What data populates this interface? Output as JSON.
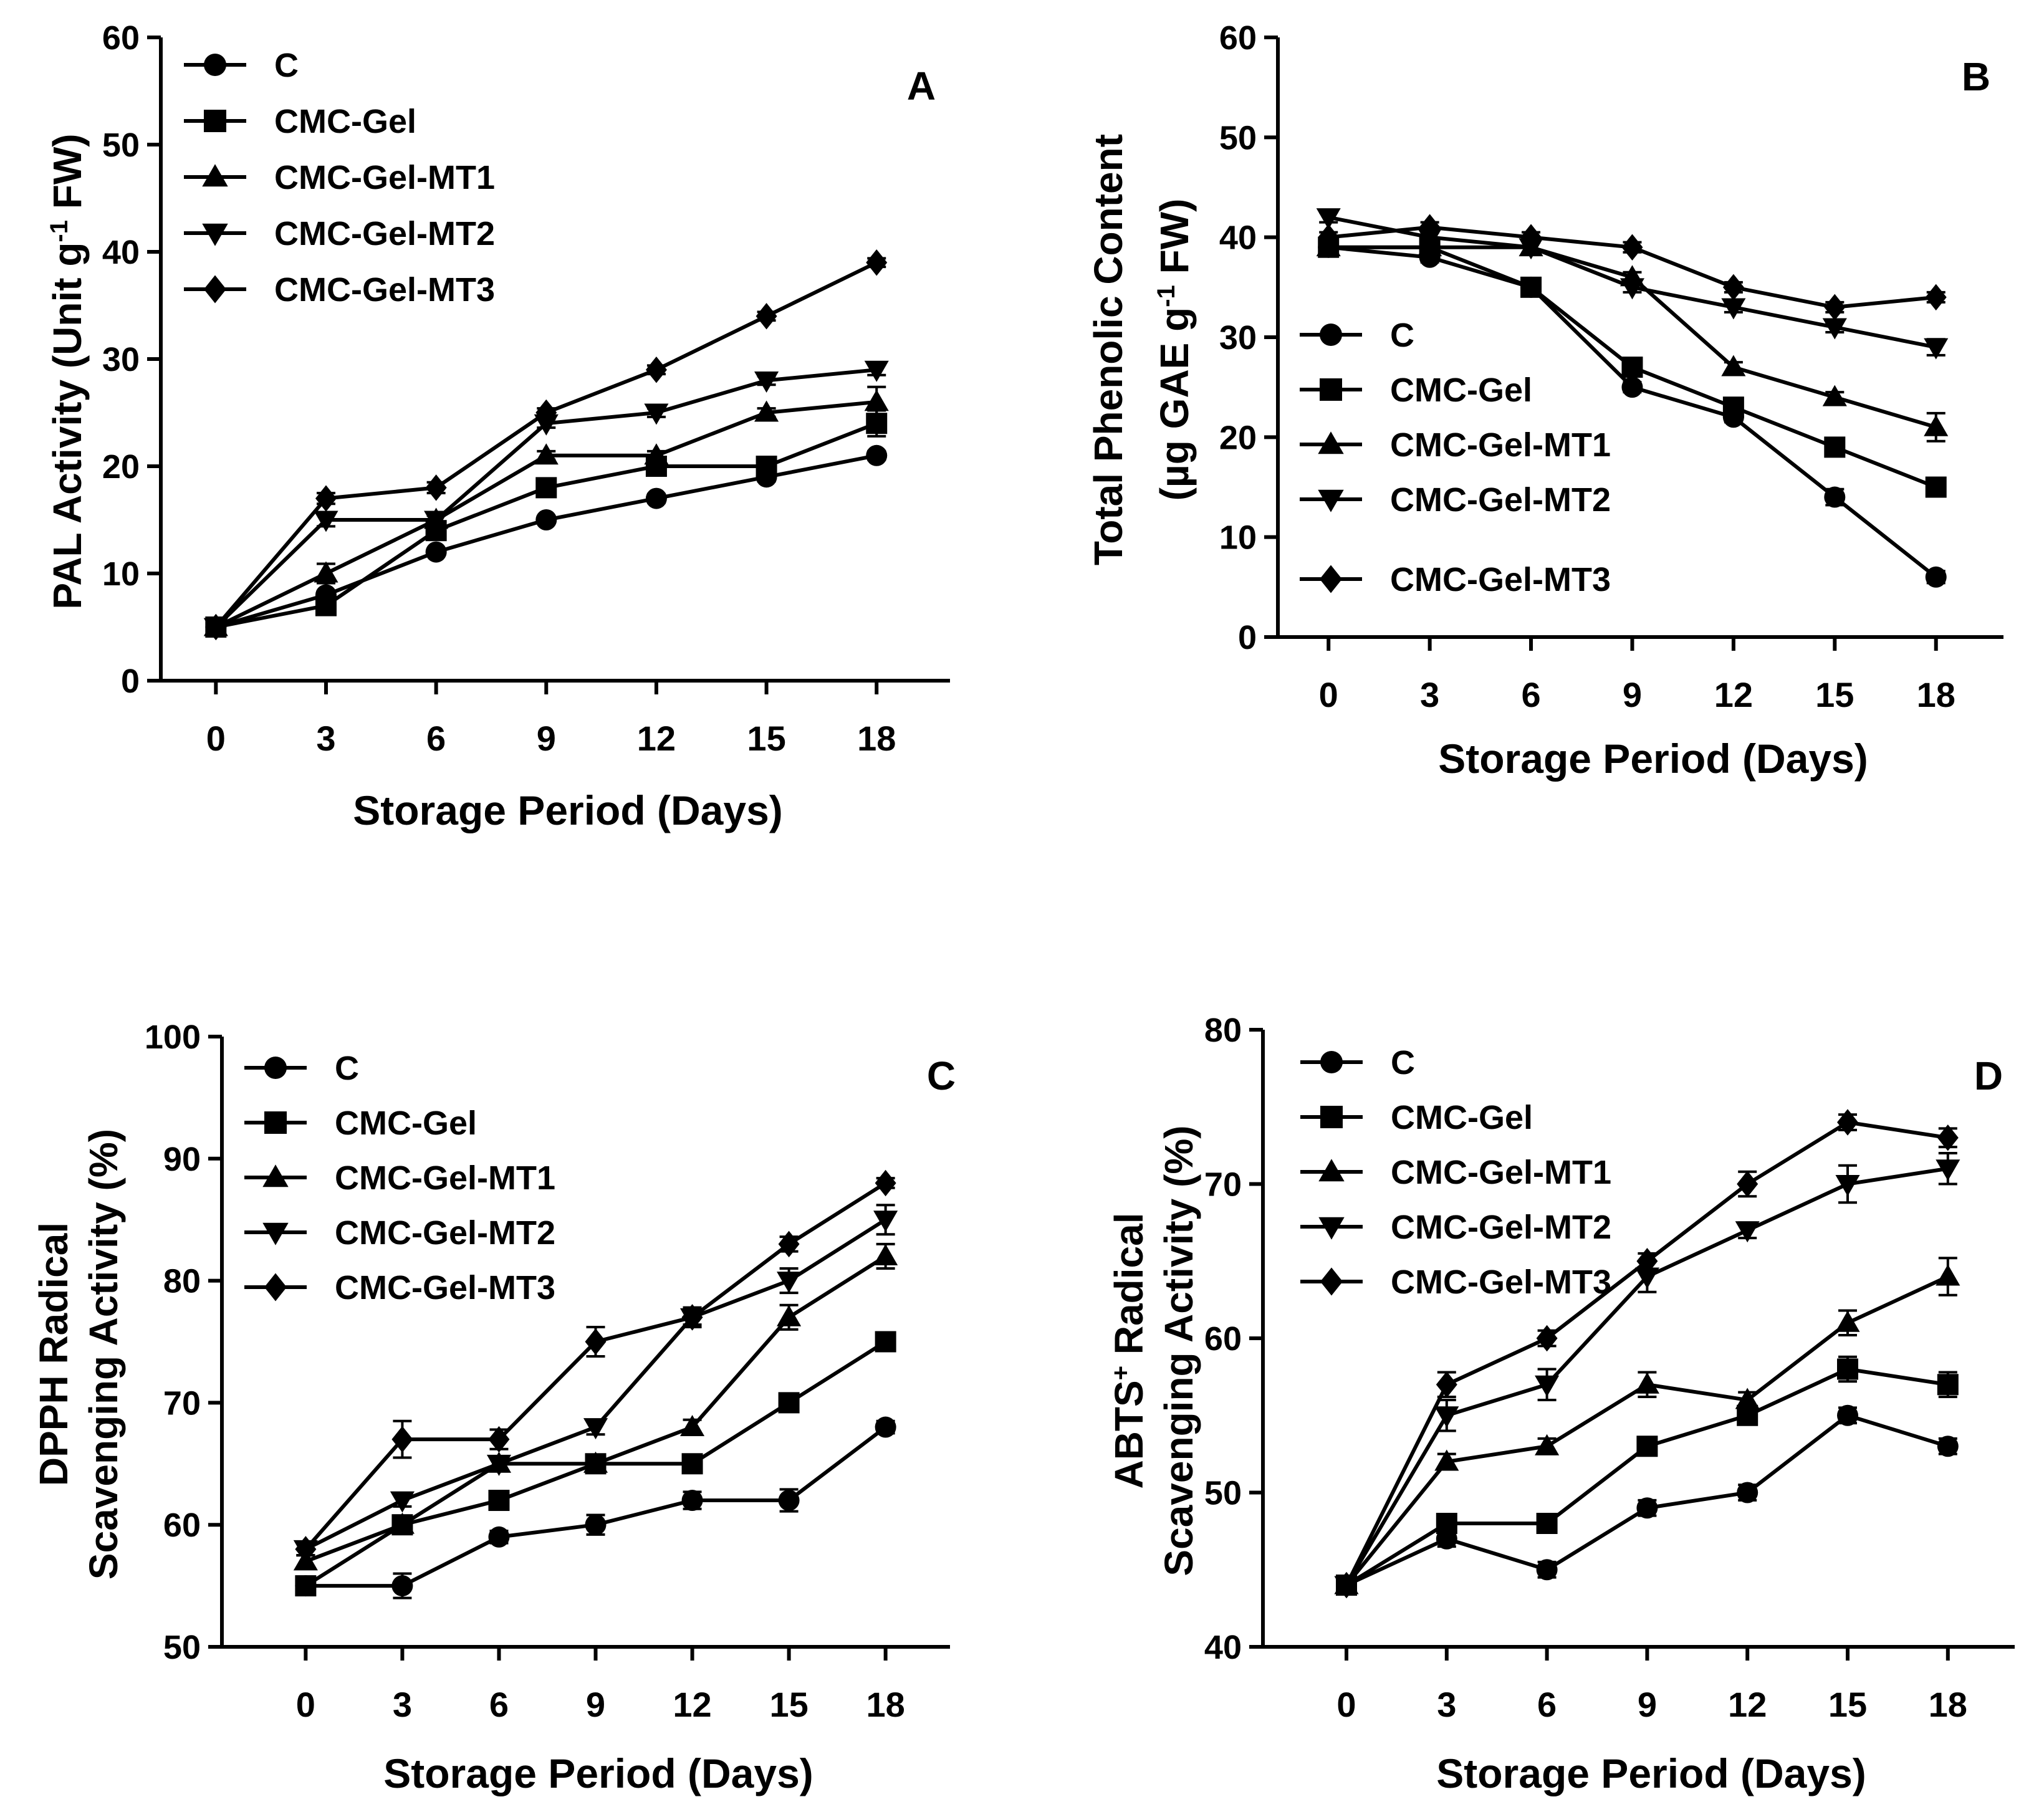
{
  "figure": {
    "background": "#ffffff",
    "ink_color": "#000000",
    "series_markers": {
      "C": "circle",
      "CMC-Gel": "square",
      "CMC-Gel-MT1": "triangle-up",
      "CMC-Gel-MT2": "triangle-down",
      "CMC-Gel-MT3": "diamond"
    }
  },
  "chart_data": [
    {
      "id": "A",
      "type": "line",
      "panel_label": "A",
      "xlabel": "Storage Period (Days)",
      "ylabel_lines": [
        {
          "parts": [
            {
              "t": "PAL Activity (Unit g"
            },
            {
              "t": "-1",
              "sup": true
            },
            {
              "t": " FW)"
            }
          ]
        }
      ],
      "x": [
        0,
        3,
        6,
        9,
        12,
        15,
        18
      ],
      "xticks": [
        0,
        3,
        6,
        9,
        12,
        15,
        18
      ],
      "yticks": [
        0,
        10,
        20,
        30,
        40,
        50,
        60
      ],
      "ylim": [
        0,
        60
      ],
      "legend_position": "top-left",
      "legend_order": [
        "C",
        "CMC-Gel",
        "CMC-Gel-MT1",
        "CMC-Gel-MT2",
        "CMC-Gel-MT3"
      ],
      "series": [
        {
          "name": "C",
          "values": [
            5,
            8,
            12,
            15,
            17,
            19,
            21
          ],
          "err": [
            0,
            0.3,
            0.3,
            0.3,
            0.4,
            0.4,
            0.4
          ]
        },
        {
          "name": "CMC-Gel",
          "values": [
            5,
            7,
            14,
            18,
            20,
            20,
            24
          ],
          "err": [
            0,
            0.4,
            0.4,
            0.4,
            0.4,
            0.4,
            1.2
          ]
        },
        {
          "name": "CMC-Gel-MT1",
          "values": [
            5,
            10,
            15,
            21,
            21,
            25,
            26
          ],
          "err": [
            0,
            0.9,
            0.4,
            0.4,
            0.4,
            0.4,
            1.4
          ]
        },
        {
          "name": "CMC-Gel-MT2",
          "values": [
            5,
            15,
            15,
            24,
            25,
            28,
            29
          ],
          "err": [
            0,
            0.6,
            0.4,
            0.4,
            0.4,
            0.4,
            0.5
          ]
        },
        {
          "name": "CMC-Gel-MT3",
          "values": [
            5,
            17,
            18,
            25,
            29,
            34,
            39
          ],
          "err": [
            0,
            0.5,
            0.5,
            0.4,
            0.4,
            0.4,
            0.4
          ]
        }
      ]
    },
    {
      "id": "B",
      "type": "line",
      "panel_label": "B",
      "xlabel": "Storage Period (Days)",
      "ylabel_lines": [
        {
          "parts": [
            {
              "t": "Total Phenolic Content"
            }
          ]
        },
        {
          "parts": [
            {
              "t": "(µg GAE g"
            },
            {
              "t": "-1",
              "sup": true
            },
            {
              "t": " FW)"
            }
          ]
        }
      ],
      "x": [
        0,
        3,
        6,
        9,
        12,
        15,
        18
      ],
      "xticks": [
        0,
        3,
        6,
        9,
        12,
        15,
        18
      ],
      "yticks": [
        0,
        10,
        20,
        30,
        40,
        50,
        60
      ],
      "ylim": [
        0,
        60
      ],
      "legend_position": "lower-left",
      "legend_order": [
        "C",
        "CMC-Gel",
        "CMC-Gel-MT1",
        "CMC-Gel-MT2",
        "CMC-Gel-MT3"
      ],
      "series": [
        {
          "name": "C",
          "values": [
            39,
            38,
            35,
            25,
            22,
            14,
            6
          ],
          "err": [
            0.5,
            0.5,
            0.5,
            0.5,
            0.5,
            0.8,
            0.6
          ]
        },
        {
          "name": "CMC-Gel",
          "values": [
            39,
            39,
            35,
            27,
            23,
            19,
            15
          ],
          "err": [
            0.5,
            0.5,
            0.5,
            0.5,
            0.5,
            0.5,
            0.6
          ]
        },
        {
          "name": "CMC-Gel-MT1",
          "values": [
            39,
            39,
            39,
            36,
            27,
            24,
            21
          ],
          "err": [
            0.5,
            0.5,
            0.5,
            0.5,
            0.5,
            0.5,
            1.4
          ]
        },
        {
          "name": "CMC-Gel-MT2",
          "values": [
            42,
            40,
            39,
            35,
            33,
            31,
            29
          ],
          "err": [
            0.5,
            0.5,
            0.5,
            0.5,
            0.5,
            0.5,
            0.8
          ]
        },
        {
          "name": "CMC-Gel-MT3",
          "values": [
            40,
            41,
            40,
            39,
            35,
            33,
            34
          ],
          "err": [
            0.5,
            0.5,
            0.5,
            0.5,
            0.5,
            0.5,
            0.5
          ]
        }
      ]
    },
    {
      "id": "C",
      "type": "line",
      "panel_label": "C",
      "xlabel": "Storage Period (Days)",
      "ylabel_lines": [
        {
          "parts": [
            {
              "t": "DPPH Radical"
            }
          ]
        },
        {
          "parts": [
            {
              "t": "Scavenging Activity (%)"
            }
          ]
        }
      ],
      "x": [
        0,
        3,
        6,
        9,
        12,
        15,
        18
      ],
      "xticks": [
        0,
        3,
        6,
        9,
        12,
        15,
        18
      ],
      "yticks": [
        50,
        60,
        70,
        80,
        90,
        100
      ],
      "ylim": [
        50,
        100
      ],
      "legend_position": "top-left",
      "legend_order": [
        "C",
        "CMC-Gel",
        "CMC-Gel-MT1",
        "CMC-Gel-MT2",
        "CMC-Gel-MT3"
      ],
      "series": [
        {
          "name": "C",
          "values": [
            55,
            55,
            59,
            60,
            62,
            62,
            68
          ],
          "err": [
            0.4,
            1.0,
            0.5,
            0.8,
            0.7,
            0.9,
            0.5
          ]
        },
        {
          "name": "CMC-Gel",
          "values": [
            55,
            60,
            62,
            65,
            65,
            70,
            75
          ],
          "err": [
            0.4,
            0.6,
            0.6,
            0.6,
            0.6,
            0.6,
            0.5
          ]
        },
        {
          "name": "CMC-Gel-MT1",
          "values": [
            57,
            60,
            65,
            65,
            68,
            77,
            82
          ],
          "err": [
            0.5,
            0.5,
            0.5,
            0.5,
            0.6,
            1.0,
            1.0
          ]
        },
        {
          "name": "CMC-Gel-MT2",
          "values": [
            58,
            62,
            65,
            68,
            77,
            80,
            85
          ],
          "err": [
            0.5,
            0.5,
            0.5,
            0.6,
            0.6,
            1.0,
            1.2
          ]
        },
        {
          "name": "CMC-Gel-MT3",
          "values": [
            58,
            67,
            67,
            75,
            77,
            83,
            88
          ],
          "err": [
            0.5,
            1.5,
            0.8,
            1.2,
            0.8,
            0.6,
            0.4
          ]
        }
      ]
    },
    {
      "id": "D",
      "type": "line",
      "panel_label": "D",
      "xlabel": "Storage Period (Days)",
      "ylabel_lines": [
        {
          "parts": [
            {
              "t": "ABTS"
            },
            {
              "t": "+",
              "sup": true
            },
            {
              "t": " Radical"
            }
          ]
        },
        {
          "parts": [
            {
              "t": "Scavenging Activity (%)"
            }
          ]
        }
      ],
      "x": [
        0,
        3,
        6,
        9,
        12,
        15,
        18
      ],
      "xticks": [
        0,
        3,
        6,
        9,
        12,
        15,
        18
      ],
      "yticks": [
        40,
        50,
        60,
        70,
        80
      ],
      "ylim": [
        40,
        80
      ],
      "legend_position": "top-left",
      "legend_order": [
        "C",
        "CMC-Gel",
        "CMC-Gel-MT1",
        "CMC-Gel-MT2",
        "CMC-Gel-MT3"
      ],
      "series": [
        {
          "name": "C",
          "values": [
            44,
            47,
            45,
            49,
            50,
            55,
            53
          ],
          "err": [
            0.5,
            0.5,
            0.5,
            0.5,
            0.5,
            0.5,
            0.5
          ]
        },
        {
          "name": "CMC-Gel",
          "values": [
            44,
            48,
            48,
            53,
            55,
            58,
            57
          ],
          "err": [
            0.5,
            0.5,
            0.5,
            0.5,
            0.5,
            0.8,
            0.8
          ]
        },
        {
          "name": "CMC-Gel-MT1",
          "values": [
            44,
            52,
            53,
            57,
            56,
            61,
            64
          ],
          "err": [
            0.5,
            0.5,
            0.5,
            0.8,
            0.5,
            0.8,
            1.2
          ]
        },
        {
          "name": "CMC-Gel-MT2",
          "values": [
            44,
            55,
            57,
            64,
            67,
            70,
            71
          ],
          "err": [
            0.5,
            1.0,
            1.0,
            1.0,
            0.5,
            1.2,
            1.0
          ]
        },
        {
          "name": "CMC-Gel-MT3",
          "values": [
            44,
            57,
            60,
            65,
            70,
            74,
            73
          ],
          "err": [
            0.5,
            0.8,
            0.5,
            0.5,
            0.8,
            0.5,
            0.6
          ]
        }
      ]
    }
  ]
}
